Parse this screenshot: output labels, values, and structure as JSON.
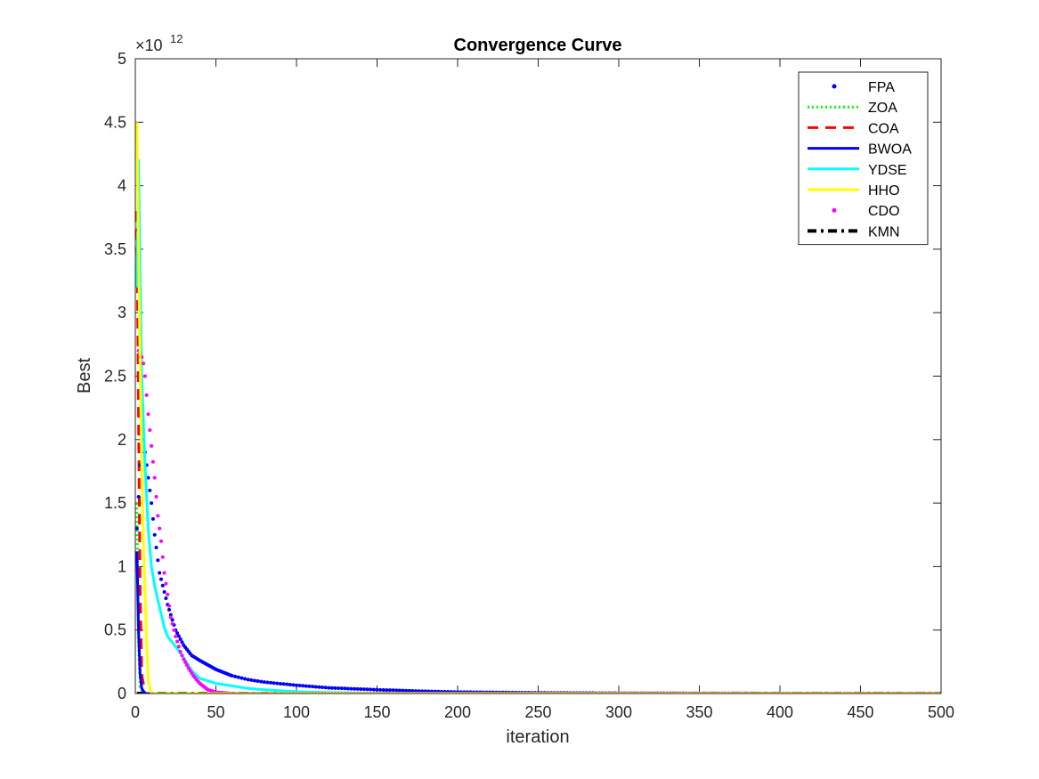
{
  "chart_data": {
    "type": "line",
    "title": "Convergence Curve",
    "xlabel": "iteration",
    "ylabel": "Best",
    "y_exponent_label": "×10",
    "y_exponent": "12",
    "xlim": [
      0,
      500
    ],
    "ylim": [
      0,
      5
    ],
    "y_unit_multiplier": 1000000000000.0,
    "xticks": [
      "0",
      "50",
      "100",
      "150",
      "200",
      "250",
      "300",
      "350",
      "400",
      "450",
      "500"
    ],
    "yticks": [
      "0",
      "0.5",
      "1",
      "1.5",
      "2",
      "2.5",
      "3",
      "3.5",
      "4",
      "4.5",
      "5"
    ],
    "grid": false,
    "legend_position": "top-right",
    "series": [
      {
        "name": "FPA",
        "color": "#0000ff",
        "style": "dots",
        "x": [
          1,
          3,
          5,
          8,
          10,
          12,
          15,
          18,
          20,
          25,
          30,
          35,
          40,
          50,
          60,
          70,
          80,
          100,
          120,
          150,
          180,
          200,
          250,
          300,
          400,
          500
        ],
        "y": [
          1.3,
          1.8,
          2.0,
          1.7,
          1.5,
          1.25,
          0.95,
          0.8,
          0.7,
          0.5,
          0.38,
          0.3,
          0.26,
          0.19,
          0.14,
          0.11,
          0.09,
          0.065,
          0.045,
          0.03,
          0.018,
          0.012,
          0.006,
          0.003,
          0.001,
          0.0005
        ]
      },
      {
        "name": "ZOA",
        "color": "#00ff00",
        "style": "dotted",
        "x": [
          1,
          2,
          3,
          5,
          500
        ],
        "y": [
          1.5,
          0.4,
          0.05,
          0.0,
          0.0
        ]
      },
      {
        "name": "COA",
        "color": "#ff0000",
        "style": "dashed",
        "x": [
          1,
          2,
          3,
          4,
          6,
          500
        ],
        "y": [
          3.8,
          2.2,
          0.8,
          0.15,
          0.0,
          0.0
        ]
      },
      {
        "name": "BWOA",
        "color": "#0000ff",
        "style": "solid",
        "x": [
          1,
          2,
          3,
          4,
          6,
          10,
          500
        ],
        "y": [
          1.12,
          0.5,
          0.15,
          0.04,
          0.0,
          0.0,
          0.0
        ]
      },
      {
        "name": "YDSE",
        "color": "#00ffff",
        "style": "solid",
        "x": [
          1,
          2,
          3,
          4,
          6,
          8,
          10,
          12,
          15,
          18,
          20,
          25,
          30,
          35,
          40,
          50,
          60,
          70,
          80,
          100,
          120,
          150,
          200,
          500
        ],
        "y": [
          3.2,
          4.2,
          3.3,
          2.5,
          1.8,
          1.3,
          1.0,
          0.85,
          0.68,
          0.52,
          0.45,
          0.37,
          0.28,
          0.18,
          0.12,
          0.08,
          0.06,
          0.04,
          0.03,
          0.015,
          0.008,
          0.003,
          0.001,
          0.0
        ]
      },
      {
        "name": "HHO",
        "color": "#ffff00",
        "style": "solid",
        "x": [
          1,
          2,
          3,
          4,
          5,
          6,
          7,
          8,
          10,
          500
        ],
        "y": [
          4.5,
          3.5,
          2.6,
          1.8,
          1.2,
          0.8,
          0.4,
          0.1,
          0.0,
          0.0
        ]
      },
      {
        "name": "CDO",
        "color": "#ff00ff",
        "style": "dots",
        "x": [
          1,
          2,
          3,
          4,
          5,
          6,
          8,
          10,
          12,
          14,
          16,
          18,
          20,
          22,
          25,
          28,
          30,
          33,
          36,
          40,
          45,
          50,
          60,
          100,
          200,
          300,
          400,
          500
        ],
        "y": [
          3.65,
          2.7,
          2.68,
          2.65,
          2.6,
          2.5,
          2.2,
          1.95,
          1.7,
          1.4,
          1.2,
          0.95,
          0.78,
          0.6,
          0.45,
          0.33,
          0.27,
          0.2,
          0.14,
          0.08,
          0.03,
          0.01,
          0.0,
          0.0,
          0.0,
          0.0,
          0.0,
          0.0
        ]
      },
      {
        "name": "KMN",
        "color": "#000000",
        "style": "dashdot",
        "x": [
          1,
          500
        ],
        "y": [
          0.0,
          0.0
        ]
      }
    ]
  }
}
